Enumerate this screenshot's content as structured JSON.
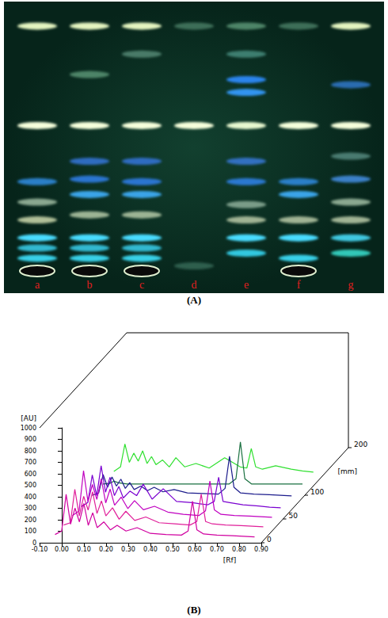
{
  "panel_a": {
    "caption": "(A)",
    "lanes": [
      {
        "label": "a",
        "bands": [
          {
            "rf": 0.96,
            "color": "#e4f4c0"
          },
          {
            "rf": 0.57,
            "color": "#f6ffdc"
          },
          {
            "rf": 0.35,
            "color": "#2a7fc8"
          },
          {
            "rf": 0.27,
            "color": "#8aa890"
          },
          {
            "rf": 0.2,
            "color": "#b0c098"
          },
          {
            "rf": 0.13,
            "color": "#48dcff"
          },
          {
            "rf": 0.09,
            "color": "#30b8d0"
          },
          {
            "rf": 0.05,
            "color": "#38d0e8"
          },
          {
            "rf": 0,
            "color": "#0a0a0a"
          }
        ]
      },
      {
        "label": "b",
        "bands": [
          {
            "rf": 0.96,
            "color": "#e4f4c0"
          },
          {
            "rf": 0.77,
            "color": "#4e8468"
          },
          {
            "rf": 0.57,
            "color": "#f6ffdc"
          },
          {
            "rf": 0.43,
            "color": "#2f6cc0"
          },
          {
            "rf": 0.36,
            "color": "#2a74d0"
          },
          {
            "rf": 0.3,
            "color": "#3aa4e8"
          },
          {
            "rf": 0.22,
            "color": "#9cb494"
          },
          {
            "rf": 0.13,
            "color": "#48dcff"
          },
          {
            "rf": 0.09,
            "color": "#30b8d0"
          },
          {
            "rf": 0.05,
            "color": "#38d0e8"
          },
          {
            "rf": 0,
            "color": "#0a0a0a"
          }
        ]
      },
      {
        "label": "c",
        "bands": [
          {
            "rf": 0.96,
            "color": "#e4f4c0"
          },
          {
            "rf": 0.85,
            "color": "#4a7a68"
          },
          {
            "rf": 0.57,
            "color": "#f6ffdc"
          },
          {
            "rf": 0.43,
            "color": "#2f6cc0"
          },
          {
            "rf": 0.35,
            "color": "#2a74d0"
          },
          {
            "rf": 0.3,
            "color": "#3aa4e8"
          },
          {
            "rf": 0.22,
            "color": "#9cb494"
          },
          {
            "rf": 0.13,
            "color": "#48dcff"
          },
          {
            "rf": 0.09,
            "color": "#30b8d0"
          },
          {
            "rf": 0.05,
            "color": "#38d0e8"
          },
          {
            "rf": 0,
            "color": "#0a0a0a"
          }
        ]
      },
      {
        "label": "d",
        "bands": [
          {
            "rf": 0.96,
            "color": "#3e6e58"
          },
          {
            "rf": 0.57,
            "color": "#f6ffdc"
          },
          {
            "rf": 0.02,
            "color": "#2e5e4e"
          }
        ]
      },
      {
        "label": "e",
        "bands": [
          {
            "rf": 0.96,
            "color": "#4e8468"
          },
          {
            "rf": 0.85,
            "color": "#3e7e70"
          },
          {
            "rf": 0.75,
            "color": "#2a84ec"
          },
          {
            "rf": 0.7,
            "color": "#3094f0"
          },
          {
            "rf": 0.57,
            "color": "#e8f8d0"
          },
          {
            "rf": 0.43,
            "color": "#3070c0"
          },
          {
            "rf": 0.35,
            "color": "#2a78d0"
          },
          {
            "rf": 0.26,
            "color": "#7a9c88"
          },
          {
            "rf": 0.2,
            "color": "#a0b494"
          },
          {
            "rf": 0.13,
            "color": "#48dcff"
          },
          {
            "rf": 0.07,
            "color": "#30c8e0"
          }
        ]
      },
      {
        "label": "f",
        "bands": [
          {
            "rf": 0.96,
            "color": "#3e6e58"
          },
          {
            "rf": 0.57,
            "color": "#f6ffdc"
          },
          {
            "rf": 0.35,
            "color": "#2a7fc8"
          },
          {
            "rf": 0.3,
            "color": "#3aa4e8"
          },
          {
            "rf": 0.2,
            "color": "#a0b494"
          },
          {
            "rf": 0.13,
            "color": "#48dcff"
          },
          {
            "rf": 0.05,
            "color": "#38d0e8"
          },
          {
            "rf": 0,
            "color": "#0a0a0a"
          }
        ]
      },
      {
        "label": "g",
        "bands": [
          {
            "rf": 0.96,
            "color": "#e4f4c0"
          },
          {
            "rf": 0.73,
            "color": "#2a6cb0"
          },
          {
            "rf": 0.57,
            "color": "#f6ffdc"
          },
          {
            "rf": 0.45,
            "color": "#4a7a70"
          },
          {
            "rf": 0.36,
            "color": "#3a80c8"
          },
          {
            "rf": 0.27,
            "color": "#8aa890"
          },
          {
            "rf": 0.2,
            "color": "#a0b494"
          },
          {
            "rf": 0.13,
            "color": "#40c8e0"
          },
          {
            "rf": 0.07,
            "color": "#30c8b8"
          }
        ]
      }
    ]
  },
  "chart_data": {
    "type": "line",
    "caption": "(B)",
    "x_label": "[Rf]",
    "y_label": "[AU]",
    "z_label": "[mm]",
    "xlim": [
      -0.1,
      0.9
    ],
    "xticks": [
      {
        "value": -0.1,
        "label": "-0.10"
      },
      {
        "value": 0,
        "label": "0.00"
      },
      {
        "value": 0.1,
        "label": "0.10"
      },
      {
        "value": 0.2,
        "label": "0.20"
      },
      {
        "value": 0.3,
        "label": "0.30"
      },
      {
        "value": 0.4,
        "label": "0.40"
      },
      {
        "value": 0.5,
        "label": "0.50"
      },
      {
        "value": 0.6,
        "label": "0.60"
      },
      {
        "value": 0.7,
        "label": "0.70"
      },
      {
        "value": 0.8,
        "label": "0.80"
      },
      {
        "value": 0.9,
        "label": "0.90"
      }
    ],
    "ylim": [
      0,
      1000
    ],
    "yticks": [
      0,
      100,
      200,
      300,
      400,
      500,
      600,
      700,
      800,
      900,
      1000
    ],
    "zlim": [
      0,
      200
    ],
    "zticks": [
      0,
      50,
      100,
      200
    ],
    "grid": false,
    "x": [
      -0.05,
      -0.02,
      0.0,
      0.02,
      0.04,
      0.06,
      0.08,
      0.1,
      0.12,
      0.14,
      0.17,
      0.2,
      0.23,
      0.27,
      0.32,
      0.38,
      0.45,
      0.52,
      0.55,
      0.57,
      0.59,
      0.62,
      0.68,
      0.75,
      0.8,
      0.85
    ],
    "series": [
      {
        "color": "#d000a0",
        "z": 10,
        "values": [
          30,
          60,
          380,
          120,
          260,
          140,
          300,
          110,
          220,
          90,
          140,
          70,
          110,
          60,
          90,
          40,
          30,
          25,
          60,
          320,
          70,
          35,
          25,
          20,
          15,
          10
        ]
      },
      {
        "color": "#e0209a",
        "z": 30,
        "values": [
          30,
          50,
          340,
          110,
          280,
          160,
          320,
          130,
          240,
          110,
          180,
          80,
          150,
          70,
          100,
          50,
          40,
          30,
          60,
          300,
          60,
          40,
          30,
          25,
          20,
          15
        ]
      },
      {
        "color": "#c000c0",
        "z": 50,
        "values": [
          30,
          70,
          420,
          150,
          300,
          170,
          350,
          140,
          260,
          120,
          190,
          90,
          160,
          80,
          110,
          60,
          40,
          30,
          70,
          330,
          80,
          40,
          30,
          25,
          20,
          15
        ]
      },
      {
        "color": "#7a00d0",
        "z": 70,
        "values": [
          25,
          60,
          300,
          120,
          380,
          150,
          280,
          120,
          200,
          100,
          160,
          120,
          220,
          90,
          180,
          70,
          60,
          40,
          70,
          280,
          70,
          60,
          40,
          30,
          20,
          15
        ]
      },
      {
        "color": "#1c1c8c",
        "z": 95,
        "values": [
          20,
          40,
          200,
          90,
          180,
          100,
          160,
          80,
          130,
          70,
          100,
          60,
          90,
          50,
          70,
          40,
          35,
          30,
          80,
          360,
          90,
          40,
          30,
          25,
          20,
          15
        ]
      },
      {
        "color": "#1a7040",
        "z": 120,
        "values": [
          15,
          20,
          40,
          25,
          20,
          15,
          15,
          15,
          15,
          15,
          15,
          15,
          15,
          15,
          15,
          15,
          15,
          15,
          60,
          380,
          60,
          15,
          15,
          15,
          15,
          15
        ]
      },
      {
        "color": "#30e030",
        "z": 145,
        "values": [
          20,
          60,
          260,
          100,
          180,
          110,
          200,
          90,
          150,
          80,
          120,
          60,
          140,
          60,
          90,
          50,
          140,
          60,
          50,
          220,
          60,
          40,
          70,
          40,
          25,
          15
        ]
      }
    ]
  }
}
